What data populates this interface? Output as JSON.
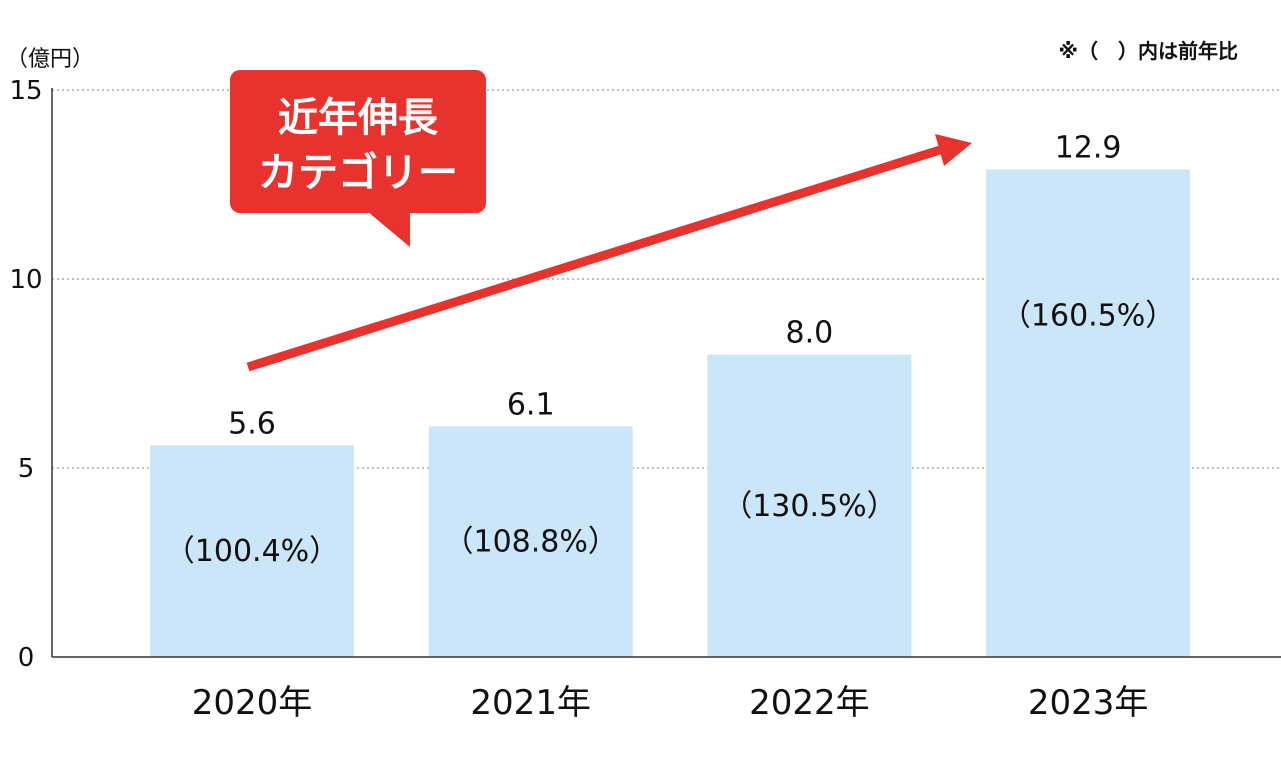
{
  "chart_data": {
    "type": "bar",
    "y_unit_label": "（億円）",
    "note": "※（　）内は前年比",
    "categories": [
      "2020年",
      "2021年",
      "2022年",
      "2023年"
    ],
    "values": [
      5.6,
      6.1,
      8.0,
      12.9
    ],
    "value_labels": [
      "5.6",
      "6.1",
      "8.0",
      "12.9"
    ],
    "yoy_labels": [
      "（100.4%）",
      "（108.8%）",
      "（130.5%）",
      "（160.5%）"
    ],
    "ylim": [
      0,
      15
    ],
    "yticks": [
      "0",
      "5",
      "10",
      "15"
    ],
    "grid": true,
    "callout": {
      "line1": "近年伸長",
      "line2": "カテゴリー"
    },
    "colors": {
      "bar": "#cbe6f8",
      "arrow": "#e8322d",
      "callout": "#e8322d",
      "axis": "#333333",
      "grid": "#9a9a9a"
    }
  }
}
